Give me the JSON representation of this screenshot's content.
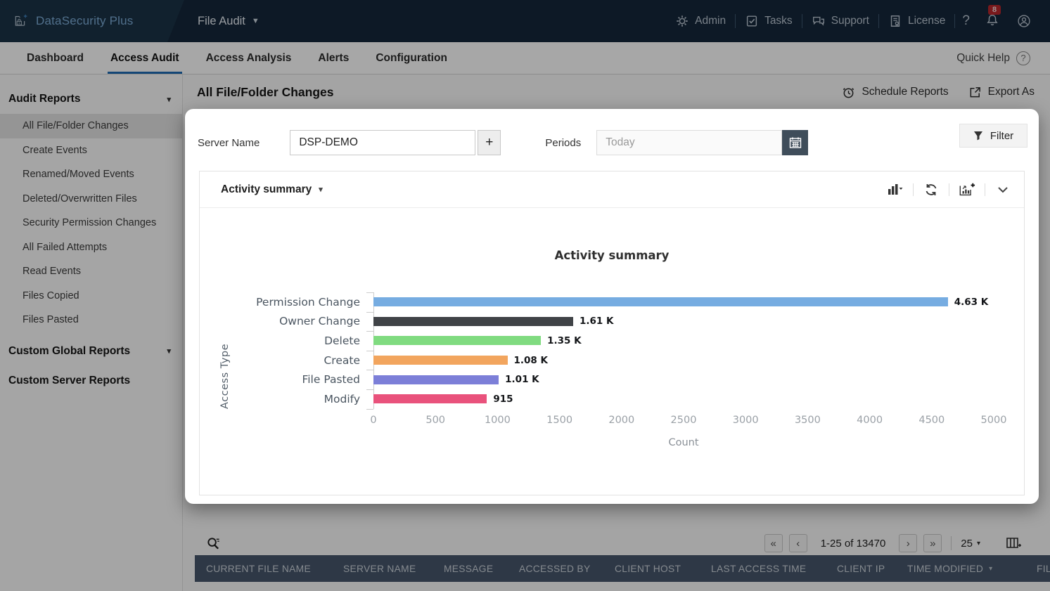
{
  "topbar": {
    "product": "DataSecurity Plus",
    "module": "File Audit",
    "items": [
      {
        "label": "Admin"
      },
      {
        "label": "Tasks"
      },
      {
        "label": "Support"
      },
      {
        "label": "License"
      }
    ],
    "help_glyph": "?",
    "notification_count": "8"
  },
  "navbar": {
    "tabs": [
      "Dashboard",
      "Access Audit",
      "Access Analysis",
      "Alerts",
      "Configuration"
    ],
    "active_tab": "Access Audit",
    "quick_help": "Quick Help",
    "quick_help_glyph": "?"
  },
  "sidebar": {
    "sections": [
      {
        "title": "Audit Reports",
        "expanded": true,
        "items": [
          "All File/Folder Changes",
          "Create Events",
          "Renamed/Moved Events",
          "Deleted/Overwritten Files",
          "Security Permission Changes",
          "All Failed Attempts",
          "Read Events",
          "Files Copied",
          "Files Pasted"
        ],
        "selected_item": "All File/Folder Changes"
      },
      {
        "title": "Custom Global Reports",
        "expanded": false
      },
      {
        "title": "Custom Server Reports",
        "expanded": false
      }
    ]
  },
  "content": {
    "page_title": "All File/Folder Changes",
    "actions": {
      "schedule": "Schedule Reports",
      "export": "Export As"
    },
    "pagination": {
      "first_glyph": "«",
      "prev_glyph": "‹",
      "range": "1-25 of 13470",
      "next_glyph": "›",
      "last_glyph": "»",
      "page_size": "25",
      "size_caret": "▾"
    },
    "table_headers": [
      "CURRENT FILE NAME",
      "SERVER NAME",
      "MESSAGE",
      "ACCESSED BY",
      "CLIENT HOST",
      "LAST ACCESS TIME",
      "CLIENT IP",
      "TIME MODIFIED",
      "FIL"
    ],
    "sorted_column": "TIME MODIFIED",
    "sort_caret": "▾"
  },
  "modal": {
    "server_name_label": "Server Name",
    "server_name_value": "DSP-DEMO",
    "add_server_glyph": "+",
    "periods_label": "Periods",
    "periods_placeholder": "Today",
    "filter_label": "Filter",
    "widget_title": "Activity summary",
    "widget_caret": "▾"
  },
  "chart_data": {
    "type": "bar",
    "orientation": "horizontal",
    "title": "Activity summary",
    "categories": [
      "Permission Change",
      "Owner Change",
      "Delete",
      "Create",
      "File Pasted",
      "Modify"
    ],
    "values": [
      4630,
      1610,
      1350,
      1080,
      1010,
      915
    ],
    "value_labels": [
      "4.63 K",
      "1.61 K",
      "1.35 K",
      "1.08 K",
      "1.01 K",
      "915"
    ],
    "colors": [
      "#76ace1",
      "#404347",
      "#80db80",
      "#f2a55e",
      "#7c7fd8",
      "#e9527c"
    ],
    "xlabel": "Count",
    "ylabel": "Access Type",
    "xlim": [
      0,
      5000
    ],
    "x_ticks": [
      0,
      500,
      1000,
      1500,
      2000,
      2500,
      3000,
      3500,
      4000,
      4500,
      5000
    ],
    "grid": false,
    "legend": false
  }
}
